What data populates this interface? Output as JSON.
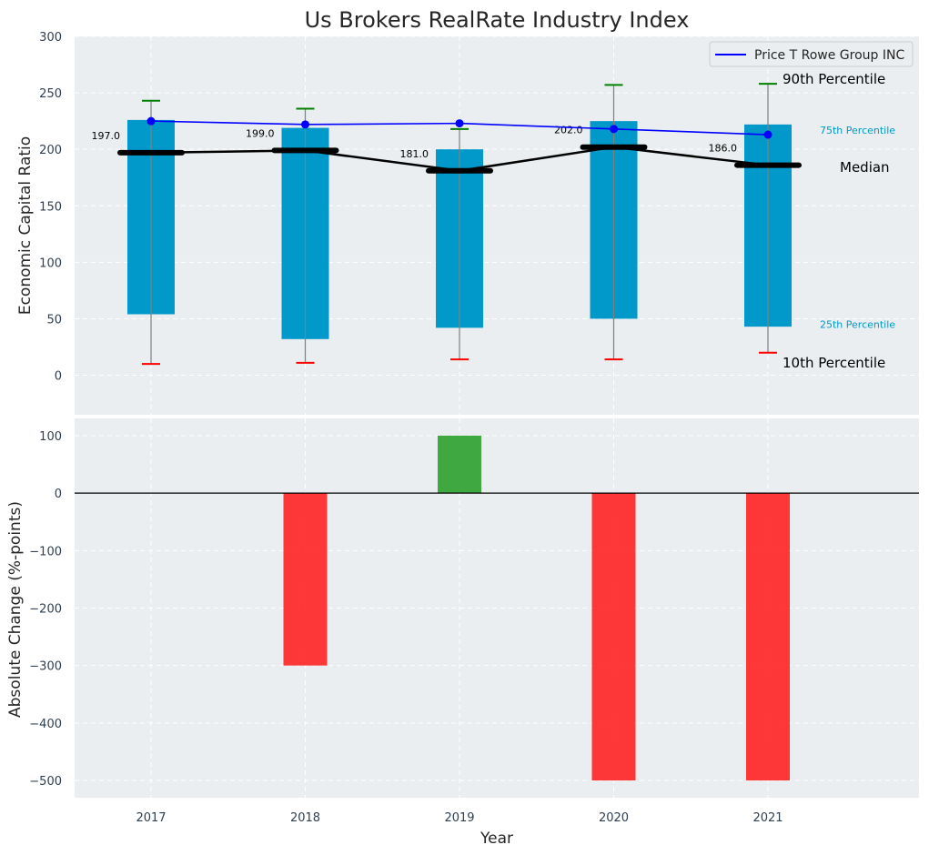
{
  "chart_data": [
    {
      "type": "bar",
      "title": "Us Brokers RealRate Industry Index",
      "xlabel": "",
      "ylabel": "Economic Capital Ratio",
      "categories": [
        "2017",
        "2018",
        "2019",
        "2020",
        "2021"
      ],
      "ylim": [
        -35,
        300
      ],
      "yticks": [
        0,
        50,
        100,
        150,
        200,
        250,
        300
      ],
      "grid": true,
      "legend": "top-right",
      "series": [
        {
          "name": "25th Percentile",
          "values": [
            54,
            32,
            42,
            50,
            43
          ]
        },
        {
          "name": "75th Percentile",
          "values": [
            226,
            219,
            200,
            225,
            222
          ]
        },
        {
          "name": "10th Percentile",
          "values": [
            10,
            11,
            14,
            14,
            20
          ]
        },
        {
          "name": "90th Percentile",
          "values": [
            243,
            236,
            218,
            257,
            258
          ]
        },
        {
          "name": "Median",
          "values": [
            197,
            199,
            181,
            202,
            186
          ]
        },
        {
          "name": "Price T Rowe Group INC",
          "values": [
            225,
            222,
            223,
            218,
            213
          ]
        }
      ],
      "median_labels": [
        "197.0",
        "199.0",
        "181.0",
        "202.0",
        "186.0"
      ],
      "annotations": {
        "p90": "90th Percentile",
        "p75": "75th Percentile",
        "median": "Median",
        "p25": "25th Percentile",
        "p10": "10th Percentile"
      },
      "colors": {
        "bar": "#0099c9",
        "company": "#0000ff",
        "median": "#000000",
        "p90_cap": "#008000",
        "p10_cap": "#ff0000",
        "whisker": "#808080"
      }
    },
    {
      "type": "bar",
      "xlabel": "Year",
      "ylabel": "Absolute Change (%-points)",
      "categories": [
        "2017",
        "2018",
        "2019",
        "2020",
        "2021"
      ],
      "values": [
        0,
        -300,
        100,
        -500,
        -500
      ],
      "ylim": [
        -530,
        130
      ],
      "yticks": [
        100,
        0,
        -100,
        -200,
        -300,
        -400,
        -500
      ],
      "ytick_labels": [
        "100",
        "0",
        "−100",
        "−200",
        "−300",
        "−400",
        "−500"
      ],
      "grid": true,
      "colors": {
        "positive": "#2ca02c",
        "negative": "#ff2222",
        "zero_line": "#000000"
      }
    }
  ]
}
